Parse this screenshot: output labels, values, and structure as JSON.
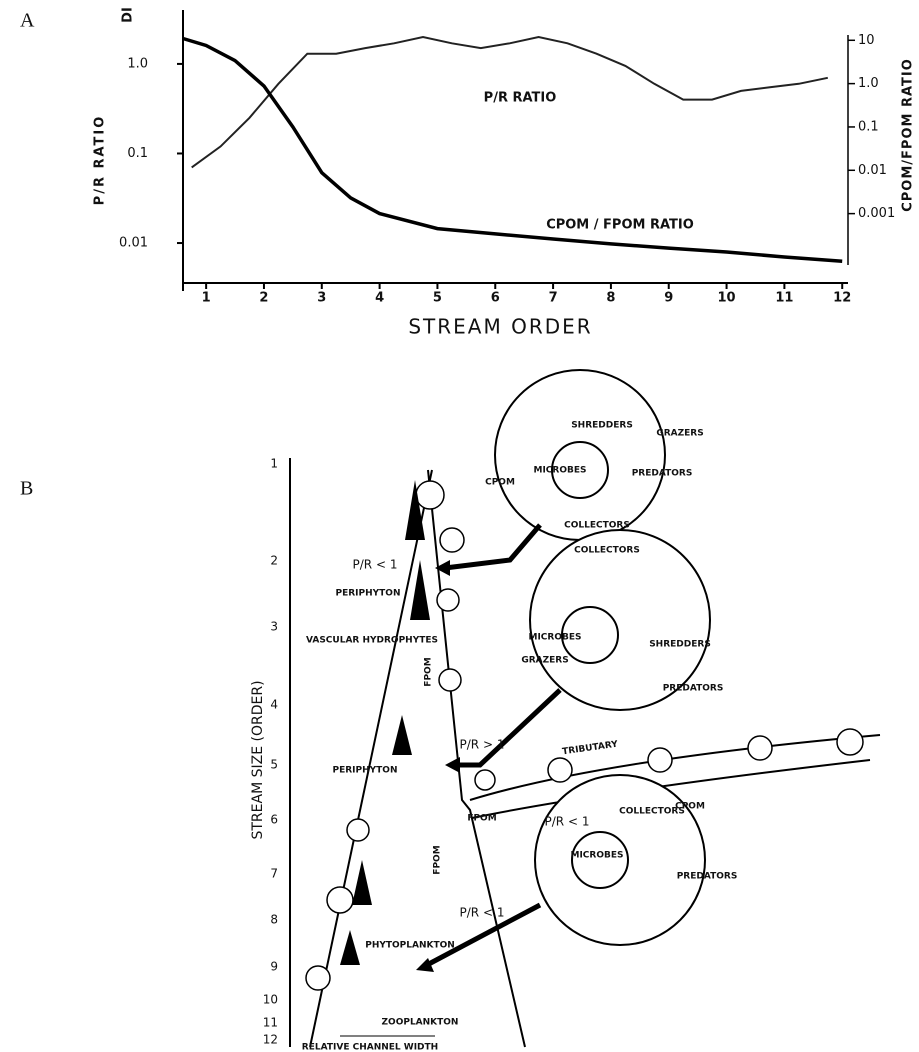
{
  "chart_data": {
    "type": "line",
    "panel_label": "A",
    "x_label": "STREAM ORDER",
    "y_label": "P/R RATIO",
    "y2_label": "CPOM/FPOM RATIO",
    "xlim": [
      0.6,
      12.1
    ],
    "xticks": [
      1,
      2,
      3,
      4,
      5,
      6,
      7,
      8,
      9,
      10,
      11,
      12
    ],
    "ylim": [
      0.005,
      4
    ],
    "yticks": [
      0.01,
      0.1,
      {
        "value": 1,
        "label": "1.0"
      }
    ],
    "log_y": true,
    "y2lim": [
      5e-05,
      50
    ],
    "y2ticks": [
      10,
      {
        "value": 1,
        "label": "1.0"
      },
      0.1,
      0.01,
      0.001
    ],
    "log_y2": true,
    "annotations": [
      "DI",
      "P/R RATIO",
      "CPOM / FPOM RATIO"
    ],
    "series": [
      {
        "name": "P/R RATIO",
        "color": "#222222",
        "x": [
          0.75,
          1.25,
          1.75,
          2.25,
          2.75,
          3.25,
          3.75,
          4.25,
          4.75,
          5.25,
          5.75,
          6.25,
          6.75,
          7.25,
          7.75,
          8.25,
          8.75,
          9.25,
          9.75,
          10.25,
          10.75,
          11.25,
          11.75
        ],
        "values": [
          0.07,
          0.12,
          0.25,
          0.6,
          1.3,
          1.3,
          1.5,
          1.7,
          2,
          1.7,
          1.5,
          1.7,
          2,
          1.7,
          1.3,
          0.95,
          0.6,
          0.4,
          0.4,
          0.5,
          0.55,
          0.6,
          0.7
        ]
      },
      {
        "name": "CPOM / FPOM RATIO",
        "color": "#000000",
        "axis": "y2",
        "x": [
          0.6,
          1,
          1.5,
          2,
          2.5,
          3,
          3.5,
          4,
          5,
          6,
          7,
          8,
          9,
          10,
          11,
          12
        ],
        "values": [
          11,
          7.6,
          3.4,
          0.88,
          0.1,
          0.0088,
          0.0023,
          0.001,
          0.00045,
          0.00034,
          0.00026,
          0.0002,
          0.00016,
          0.00013,
          0.0001,
          8e-05
        ]
      }
    ]
  },
  "diagram": {
    "panel_label": "B",
    "axis_title": "STREAM SIZE (ORDER)",
    "orders": [
      "1",
      "2",
      "3",
      "4",
      "5",
      "6",
      "7",
      "8",
      "9",
      "10",
      "11",
      "12"
    ],
    "labels": [
      "CPOM",
      "P/R < 1",
      "PERIPHYTON",
      "VASCULAR HYDROPHYTES",
      "FPOM",
      "P/R > 1",
      "PERIPHYTON",
      "TRIBUTARY",
      "FPOM",
      "P/R < 1",
      "CPOM",
      "FPOM",
      "P/R < 1",
      "PHYTOPLANKTON",
      "ZOOPLANKTON"
    ],
    "width_label": "RELATIVE CHANNEL WIDTH",
    "circles": [
      {
        "items": [
          "SHREDDERS",
          "GRAZERS",
          "MICROBES",
          "PREDATORS",
          "COLLECTORS"
        ]
      },
      {
        "items": [
          "COLLECTORS",
          "MICROBES",
          "SHREDDERS",
          "GRAZERS",
          "PREDATORS"
        ]
      },
      {
        "items": [
          "COLLECTORS",
          "MICROBES",
          "PREDATORS"
        ]
      }
    ]
  }
}
